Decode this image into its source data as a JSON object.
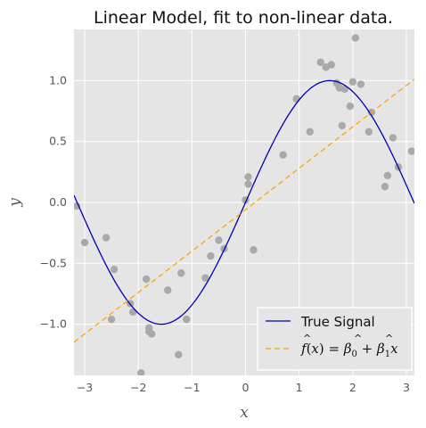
{
  "chart_data": {
    "type": "scatter",
    "title": "Linear Model, fit to non-linear data.",
    "xlabel": "x",
    "ylabel": "y",
    "xlim": [
      -3.2,
      3.15
    ],
    "ylim": [
      -1.42,
      1.42
    ],
    "xticks": [
      -3,
      -2,
      -1,
      0,
      1,
      2,
      3
    ],
    "yticks": [
      -1.0,
      -0.5,
      0.0,
      0.5,
      1.0
    ],
    "xtick_labels": [
      "−3",
      "−2",
      "−1",
      "0",
      "1",
      "2",
      "3"
    ],
    "ytick_labels": [
      "−1.0",
      "−0.5",
      "0.0",
      "0.5",
      "1.0"
    ],
    "grid": true,
    "legend_position": "bottom-right",
    "colors": {
      "background": "#e5e5e5",
      "grid": "#ffffff",
      "points": "#a9a9a9",
      "true_signal": "#0000bb",
      "fit": "#ffa500"
    },
    "points": {
      "x": [
        -3.15,
        -3.0,
        -2.6,
        -2.45,
        -2.5,
        -2.15,
        -2.1,
        -1.95,
        -1.85,
        -1.8,
        -1.75,
        -1.8,
        -1.45,
        -1.25,
        -1.2,
        -1.1,
        -0.75,
        -0.65,
        -0.5,
        -0.4,
        0.0,
        0.05,
        0.05,
        0.15,
        0.7,
        0.95,
        1.2,
        1.4,
        1.5,
        1.6,
        1.7,
        1.75,
        1.8,
        1.85,
        1.95,
        2.0,
        2.05,
        2.15,
        2.3,
        2.35,
        2.6,
        2.65,
        2.75,
        2.85,
        3.1
      ],
      "y": [
        -0.03,
        -0.33,
        -0.29,
        -0.55,
        -0.96,
        -0.83,
        -0.9,
        -1.4,
        -0.63,
        -1.03,
        -1.08,
        -1.06,
        -0.72,
        -1.25,
        -0.58,
        -0.96,
        -0.62,
        -0.44,
        -0.31,
        -0.38,
        0.02,
        0.15,
        0.21,
        -0.39,
        0.39,
        0.85,
        0.58,
        1.15,
        1.11,
        1.13,
        0.98,
        0.94,
        0.63,
        0.93,
        0.79,
        0.99,
        1.35,
        0.97,
        0.58,
        0.74,
        0.13,
        0.22,
        0.53,
        0.29,
        0.42
      ]
    },
    "series": [
      {
        "name": "True Signal",
        "function": "sin(x)"
      },
      {
        "name": "fit",
        "intercept": -0.06,
        "slope": 0.34
      }
    ],
    "legend": {
      "true_signal_label": "True Signal",
      "fit_label_parts": [
        "f",
        "(",
        "x",
        ") = ",
        "β",
        "0",
        " + ",
        "β",
        "1",
        "x"
      ]
    }
  }
}
